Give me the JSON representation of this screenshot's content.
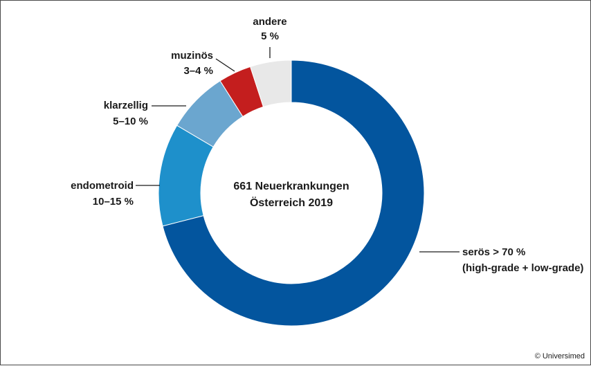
{
  "chart_data": {
    "type": "pie",
    "style": "donut",
    "center_text": [
      "661 Neuerkrankungen",
      "Österreich 2019"
    ],
    "slices": [
      {
        "label_lines": [
          "serös > 70 %",
          "(high-grade + low-grade)"
        ],
        "value": 71,
        "color": "#03559e"
      },
      {
        "label_lines": [
          "endometroid",
          "10–15 %"
        ],
        "value": 12.5,
        "color": "#1e90cb"
      },
      {
        "label_lines": [
          "klarzellig",
          "5–10 %"
        ],
        "value": 7.5,
        "color": "#6ba6cf"
      },
      {
        "label_lines": [
          "muzinös",
          "3–4 %"
        ],
        "value": 4,
        "color": "#c41e1e"
      },
      {
        "label_lines": [
          "andere",
          "5 %"
        ],
        "value": 5,
        "color": "#e8e8e8"
      }
    ]
  },
  "credit": "© Universimed"
}
